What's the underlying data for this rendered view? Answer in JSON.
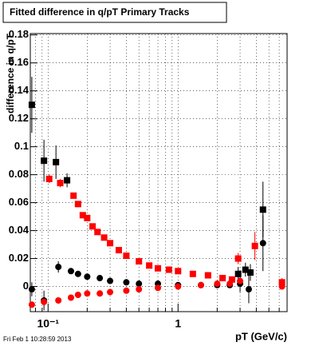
{
  "chart_data": {
    "type": "scatter",
    "title": "Fitted difference in q/pT  Primary Tracks",
    "y_label": "difference in q/pT",
    "x_label": "pT (GeV/c)",
    "footer": "Fri Feb  1 10:28:59 2013",
    "log_x": true,
    "grid": true,
    "xlim": [
      0.073,
      6.9
    ],
    "ylim": [
      -0.018,
      0.181
    ],
    "xticks": [
      {
        "value": 0.1,
        "label": "10⁻¹"
      },
      1
    ],
    "xminor_ticks": [
      0.08,
      0.09,
      0.2,
      0.3,
      0.4,
      0.5,
      0.6,
      0.7,
      0.8,
      0.9,
      2,
      3,
      4,
      5,
      6
    ],
    "yticks": [
      0,
      0.02,
      0.04,
      0.06,
      0.08,
      0.1,
      0.12,
      0.14,
      0.16,
      0.18
    ],
    "series": [
      {
        "color": "#000000",
        "marker": "square",
        "x": [
          0.075,
          0.093,
          0.115,
          0.14,
          2.9,
          3.3,
          3.6,
          4.5
        ],
        "values": [
          0.13,
          0.09,
          0.089,
          0.076,
          0.009,
          0.012,
          0.01,
          0.055
        ],
        "errors": [
          0.02,
          0.015,
          0.012,
          0.005,
          0.005,
          0.005,
          0.006,
          0.02
        ]
      },
      {
        "color": "#ff0000",
        "marker": "square",
        "x": [
          0.102,
          0.124,
          0.157,
          0.17,
          0.185,
          0.2,
          0.22,
          0.24,
          0.27,
          0.3,
          0.35,
          0.4,
          0.5,
          0.6,
          0.7,
          0.85,
          1,
          1.3,
          1.7,
          2.2,
          2.6,
          2.9,
          3.9,
          6.3
        ],
        "values": [
          0.077,
          0.074,
          0.065,
          0.059,
          0.051,
          0.049,
          0.043,
          0.039,
          0.035,
          0.031,
          0.026,
          0.022,
          0.018,
          0.015,
          0.013,
          0.012,
          0.011,
          0.009,
          0.008,
          0.006,
          0.005,
          0.02,
          0.029,
          0.003
        ],
        "errors": [
          0.003,
          0.003,
          0.002,
          null,
          null,
          null,
          null,
          null,
          null,
          null,
          null,
          null,
          null,
          null,
          null,
          null,
          null,
          null,
          null,
          null,
          null,
          0.004,
          0.01,
          0.003
        ]
      },
      {
        "color": "#000000",
        "marker": "circle",
        "x": [
          0.075,
          0.093,
          0.12,
          0.15,
          0.17,
          0.2,
          0.25,
          0.3,
          0.4,
          0.5,
          0.7,
          1,
          1.5,
          2,
          2.5,
          3,
          3.5,
          4.5
        ],
        "values": [
          -0.002,
          -0.01,
          0.014,
          0.011,
          0.009,
          0.007,
          0.006,
          0.004,
          0.003,
          0.002,
          0.002,
          0.001,
          0.001,
          0.001,
          0.001,
          0.002,
          -0.002,
          0.031
        ],
        "errors": [
          0.005,
          0.007,
          0.004,
          null,
          null,
          null,
          null,
          null,
          null,
          null,
          null,
          null,
          null,
          null,
          null,
          0.006,
          0.01,
          0.02
        ]
      },
      {
        "color": "#ff0000",
        "marker": "circle",
        "x": [
          0.075,
          0.093,
          0.12,
          0.15,
          0.17,
          0.2,
          0.25,
          0.3,
          0.4,
          0.5,
          0.7,
          1,
          1.5,
          2,
          2.5,
          3,
          6.3
        ],
        "values": [
          -0.013,
          -0.011,
          -0.01,
          -0.008,
          -0.006,
          -0.005,
          -0.005,
          -0.004,
          -0.003,
          -0.002,
          -0.001,
          0,
          0.001,
          0.002,
          0.002,
          0.004,
          0
        ],
        "errors": [
          null,
          null,
          null,
          null,
          null,
          null,
          null,
          null,
          null,
          null,
          null,
          null,
          null,
          null,
          null,
          null,
          null
        ]
      }
    ]
  }
}
